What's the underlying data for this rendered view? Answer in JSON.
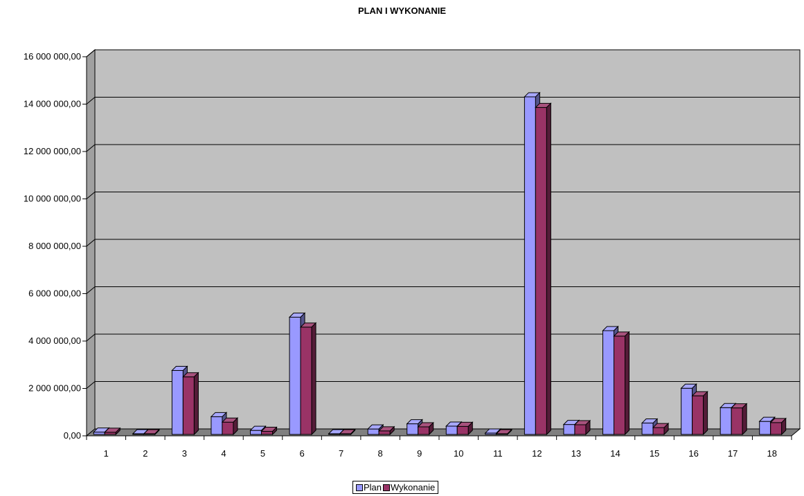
{
  "chart_data": {
    "type": "bar",
    "title": "PLAN I WYKONANIE",
    "categories": [
      "1",
      "2",
      "3",
      "4",
      "5",
      "6",
      "7",
      "8",
      "9",
      "10",
      "11",
      "12",
      "13",
      "14",
      "15",
      "16",
      "17",
      "18"
    ],
    "series": [
      {
        "name": "Plan",
        "color": "#9999FF",
        "values": [
          100000,
          20000,
          2700000,
          750000,
          170000,
          4950000,
          10000,
          230000,
          450000,
          350000,
          60000,
          14250000,
          420000,
          4380000,
          480000,
          1950000,
          1130000,
          550000
        ]
      },
      {
        "name": "Wykonanie",
        "color": "#993366",
        "values": [
          90000,
          15000,
          2430000,
          520000,
          130000,
          4530000,
          5000,
          150000,
          320000,
          340000,
          30000,
          13800000,
          410000,
          4150000,
          290000,
          1630000,
          1120000,
          500000
        ]
      }
    ],
    "yticks": [
      "0,00",
      "2 000 000,00",
      "4 000 000,00",
      "6 000 000,00",
      "8 000 000,00",
      "10 000 000,00",
      "12 000 000,00",
      "14 000 000,00",
      "16 000 000,00"
    ],
    "ylim": [
      0,
      16000000
    ],
    "grid": true,
    "legend_position": "bottom",
    "wall_color": "#C0C0C0",
    "floor_color": "#808080"
  }
}
